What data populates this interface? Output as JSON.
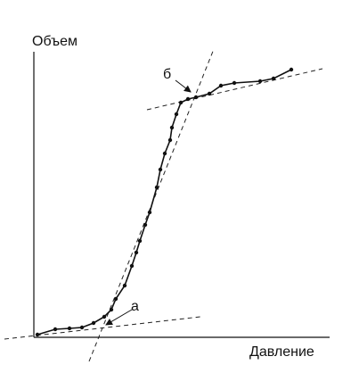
{
  "axes": {
    "y_label": "Объем",
    "x_label": "Давление"
  },
  "annotations": {
    "a": "а",
    "b": "б"
  }
}
